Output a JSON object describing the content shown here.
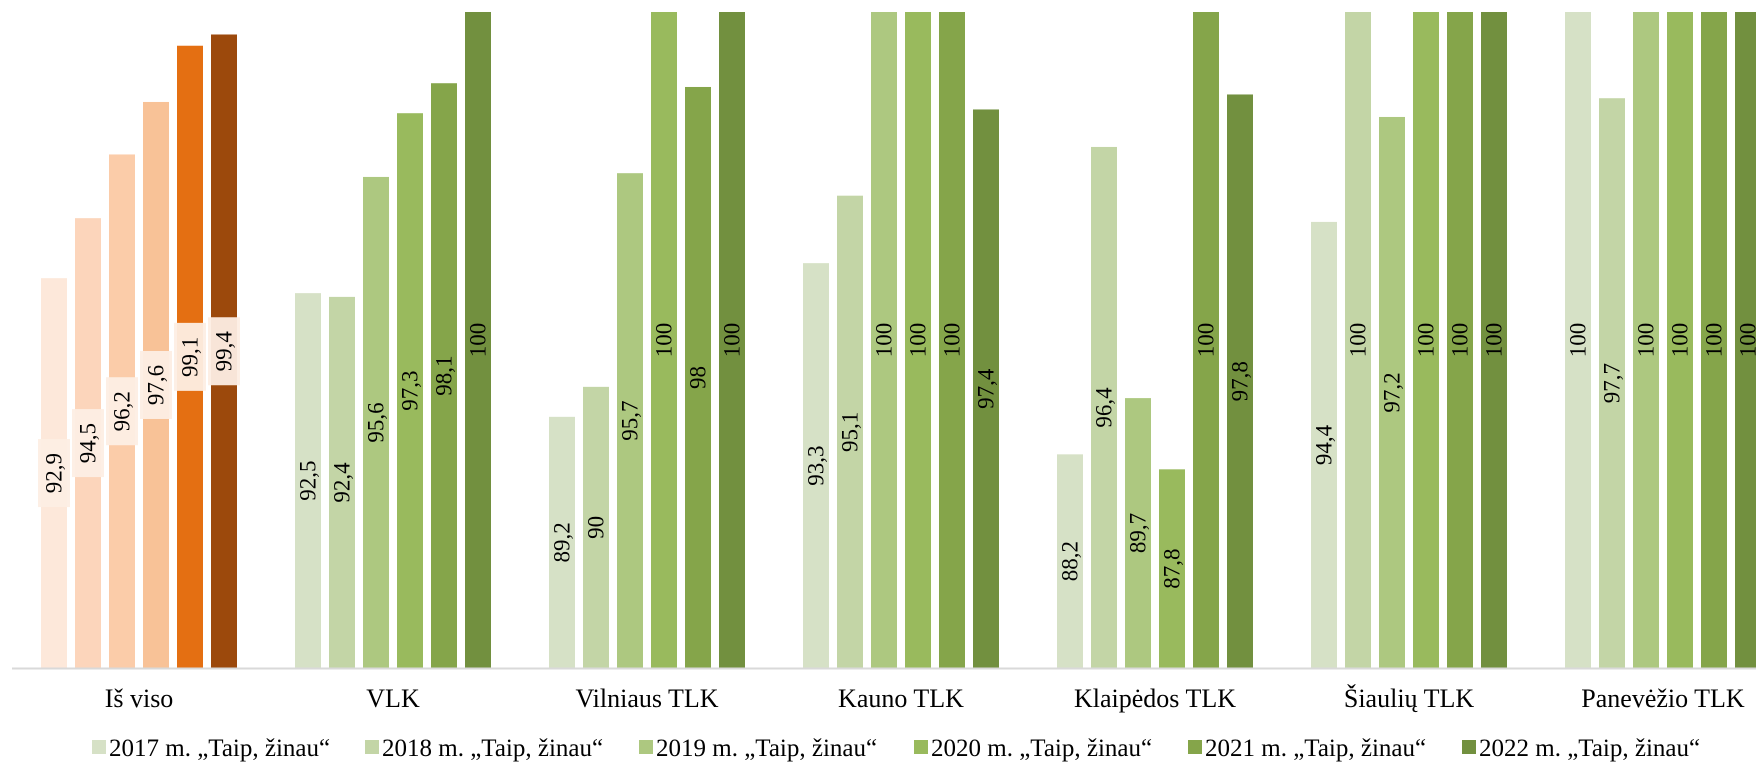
{
  "chart_data": {
    "type": "bar",
    "title": "",
    "xlabel": "",
    "ylabel": "",
    "ylim": [
      82.5,
      100
    ],
    "grid": false,
    "legend_position": "bottom",
    "categories": [
      "Iš viso",
      "VLK",
      "Vilniaus TLK",
      "Kauno TLK",
      "Klaipėdos TLK",
      "Šiaulių TLK",
      "Panevėžio TLK"
    ],
    "series": [
      {
        "name": "2017 m. „Taip, žinau“",
        "values": [
          92.9,
          92.5,
          89.2,
          93.3,
          88.2,
          94.4,
          100
        ]
      },
      {
        "name": "2018 m. „Taip, žinau“",
        "values": [
          94.5,
          92.4,
          90,
          95.1,
          96.4,
          100,
          97.7
        ]
      },
      {
        "name": "2019 m. „Taip, žinau“",
        "values": [
          96.2,
          95.6,
          95.7,
          100,
          89.7,
          97.2,
          100
        ]
      },
      {
        "name": "2020 m. „Taip, žinau“",
        "values": [
          97.6,
          97.3,
          100,
          100,
          87.8,
          100,
          100
        ]
      },
      {
        "name": "2021 m. „Taip, žinau“",
        "values": [
          99.1,
          98.1,
          98,
          100,
          100,
          100,
          100
        ]
      },
      {
        "name": "2022 m. „Taip, žinau“",
        "values": [
          99.4,
          100,
          100,
          97.4,
          97.8,
          100,
          100
        ]
      }
    ],
    "value_labels": [
      [
        "92,9",
        "94,5",
        "96,2",
        "97,6",
        "99,1",
        "99,4"
      ],
      [
        "92,5",
        "92,4",
        "95,6",
        "97,3",
        "98,1",
        "100"
      ],
      [
        "89,2",
        "90",
        "95,7",
        "100",
        "98",
        "100"
      ],
      [
        "93,3",
        "95,1",
        "100",
        "100",
        "100",
        "97,4"
      ],
      [
        "88,2",
        "96,4",
        "89,7",
        "87,8",
        "100",
        "97,8"
      ],
      [
        "94,4",
        "100",
        "97,2",
        "100",
        "100",
        "100"
      ],
      [
        "100",
        "97,7",
        "100",
        "100",
        "100",
        "100"
      ]
    ],
    "colors": {
      "highlight_group": [
        "#fde8da",
        "#fcd5bb",
        "#fbcca9",
        "#f8c297",
        "#e46f12",
        "#9c490c"
      ],
      "groups": [
        "#d6e1c6",
        "#c3d5a6",
        "#adc880",
        "#99ba5d",
        "#85a54a",
        "#72903f"
      ],
      "axis": "#d9d9d9",
      "label_box": "#fdeee4"
    }
  }
}
